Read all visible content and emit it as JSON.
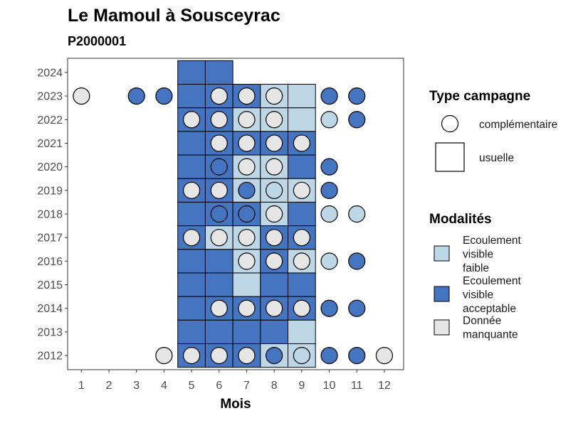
{
  "chart_data": {
    "type": "heatmap",
    "title": "Le Mamoul à Sousceyrac",
    "subtitle": "P2000001",
    "xlabel": "Mois",
    "ylabel": "",
    "x_ticks": [
      1,
      2,
      3,
      4,
      5,
      6,
      7,
      8,
      9,
      10,
      11,
      12
    ],
    "y_ticks": [
      2012,
      2013,
      2014,
      2015,
      2016,
      2017,
      2018,
      2019,
      2020,
      2021,
      2022,
      2023,
      2024
    ],
    "xlim": [
      0.5,
      12.7
    ],
    "ylim": [
      2011.4,
      2024.6
    ],
    "colors": {
      "Ecoulement visible faible": "#bdd7e7",
      "Ecoulement visible acceptable": "#4575c0",
      "Donnée manquante": "#e6e6e6"
    },
    "legend_type": {
      "title": "Type campagne",
      "entries": [
        {
          "key": "complementaire",
          "label": "complémentaire",
          "shape": "circle"
        },
        {
          "key": "usuelle",
          "label": "usuelle",
          "shape": "square"
        }
      ]
    },
    "legend_modalites": {
      "title": "Modalités",
      "entries": [
        {
          "key": "Ecoulement visible faible",
          "lines": [
            "Ecoulement",
            "visible",
            "faible"
          ]
        },
        {
          "key": "Ecoulement visible acceptable",
          "lines": [
            "Ecoulement",
            "visible",
            "acceptable"
          ]
        },
        {
          "key": "Donnée manquante",
          "lines": [
            "Donnée",
            "manquante"
          ]
        }
      ]
    },
    "tiles": [
      {
        "year": 2024,
        "month": 5,
        "modalite": "Ecoulement visible acceptable"
      },
      {
        "year": 2024,
        "month": 6,
        "modalite": "Ecoulement visible acceptable"
      },
      {
        "year": 2023,
        "month": 5,
        "modalite": "Ecoulement visible acceptable"
      },
      {
        "year": 2023,
        "month": 6,
        "modalite": "Ecoulement visible acceptable"
      },
      {
        "year": 2023,
        "month": 7,
        "modalite": "Ecoulement visible acceptable"
      },
      {
        "year": 2023,
        "month": 8,
        "modalite": "Ecoulement visible faible"
      },
      {
        "year": 2023,
        "month": 9,
        "modalite": "Ecoulement visible faible"
      },
      {
        "year": 2022,
        "month": 5,
        "modalite": "Ecoulement visible acceptable"
      },
      {
        "year": 2022,
        "month": 6,
        "modalite": "Ecoulement visible acceptable"
      },
      {
        "year": 2022,
        "month": 7,
        "modalite": "Ecoulement visible faible"
      },
      {
        "year": 2022,
        "month": 8,
        "modalite": "Ecoulement visible faible"
      },
      {
        "year": 2022,
        "month": 9,
        "modalite": "Ecoulement visible faible"
      },
      {
        "year": 2021,
        "month": 5,
        "modalite": "Ecoulement visible acceptable"
      },
      {
        "year": 2021,
        "month": 6,
        "modalite": "Ecoulement visible acceptable"
      },
      {
        "year": 2021,
        "month": 7,
        "modalite": "Ecoulement visible acceptable"
      },
      {
        "year": 2021,
        "month": 8,
        "modalite": "Ecoulement visible acceptable"
      },
      {
        "year": 2021,
        "month": 9,
        "modalite": "Ecoulement visible acceptable"
      },
      {
        "year": 2020,
        "month": 5,
        "modalite": "Ecoulement visible acceptable"
      },
      {
        "year": 2020,
        "month": 6,
        "modalite": "Ecoulement visible acceptable"
      },
      {
        "year": 2020,
        "month": 7,
        "modalite": "Ecoulement visible faible"
      },
      {
        "year": 2020,
        "month": 8,
        "modalite": "Ecoulement visible faible"
      },
      {
        "year": 2020,
        "month": 9,
        "modalite": "Ecoulement visible acceptable"
      },
      {
        "year": 2019,
        "month": 5,
        "modalite": "Ecoulement visible acceptable"
      },
      {
        "year": 2019,
        "month": 6,
        "modalite": "Ecoulement visible acceptable"
      },
      {
        "year": 2019,
        "month": 7,
        "modalite": "Ecoulement visible faible"
      },
      {
        "year": 2019,
        "month": 8,
        "modalite": "Ecoulement visible faible"
      },
      {
        "year": 2019,
        "month": 9,
        "modalite": "Ecoulement visible faible"
      },
      {
        "year": 2018,
        "month": 5,
        "modalite": "Ecoulement visible acceptable"
      },
      {
        "year": 2018,
        "month": 6,
        "modalite": "Ecoulement visible acceptable"
      },
      {
        "year": 2018,
        "month": 7,
        "modalite": "Ecoulement visible acceptable"
      },
      {
        "year": 2018,
        "month": 8,
        "modalite": "Ecoulement visible faible"
      },
      {
        "year": 2018,
        "month": 9,
        "modalite": "Ecoulement visible acceptable"
      },
      {
        "year": 2017,
        "month": 5,
        "modalite": "Ecoulement visible acceptable"
      },
      {
        "year": 2017,
        "month": 6,
        "modalite": "Ecoulement visible faible"
      },
      {
        "year": 2017,
        "month": 7,
        "modalite": "Ecoulement visible faible"
      },
      {
        "year": 2017,
        "month": 8,
        "modalite": "Ecoulement visible acceptable"
      },
      {
        "year": 2017,
        "month": 9,
        "modalite": "Ecoulement visible acceptable"
      },
      {
        "year": 2016,
        "month": 5,
        "modalite": "Ecoulement visible acceptable"
      },
      {
        "year": 2016,
        "month": 6,
        "modalite": "Ecoulement visible acceptable"
      },
      {
        "year": 2016,
        "month": 7,
        "modalite": "Ecoulement visible faible"
      },
      {
        "year": 2016,
        "month": 8,
        "modalite": "Ecoulement visible acceptable"
      },
      {
        "year": 2016,
        "month": 9,
        "modalite": "Ecoulement visible faible"
      },
      {
        "year": 2015,
        "month": 5,
        "modalite": "Ecoulement visible acceptable"
      },
      {
        "year": 2015,
        "month": 6,
        "modalite": "Ecoulement visible acceptable"
      },
      {
        "year": 2015,
        "month": 7,
        "modalite": "Ecoulement visible faible"
      },
      {
        "year": 2015,
        "month": 8,
        "modalite": "Ecoulement visible acceptable"
      },
      {
        "year": 2015,
        "month": 9,
        "modalite": "Ecoulement visible acceptable"
      },
      {
        "year": 2014,
        "month": 5,
        "modalite": "Ecoulement visible acceptable"
      },
      {
        "year": 2014,
        "month": 6,
        "modalite": "Ecoulement visible acceptable"
      },
      {
        "year": 2014,
        "month": 7,
        "modalite": "Ecoulement visible acceptable"
      },
      {
        "year": 2014,
        "month": 8,
        "modalite": "Ecoulement visible acceptable"
      },
      {
        "year": 2014,
        "month": 9,
        "modalite": "Ecoulement visible acceptable"
      },
      {
        "year": 2013,
        "month": 5,
        "modalite": "Ecoulement visible acceptable"
      },
      {
        "year": 2013,
        "month": 6,
        "modalite": "Ecoulement visible acceptable"
      },
      {
        "year": 2013,
        "month": 7,
        "modalite": "Ecoulement visible acceptable"
      },
      {
        "year": 2013,
        "month": 8,
        "modalite": "Ecoulement visible acceptable"
      },
      {
        "year": 2013,
        "month": 9,
        "modalite": "Ecoulement visible faible"
      },
      {
        "year": 2012,
        "month": 5,
        "modalite": "Ecoulement visible acceptable"
      },
      {
        "year": 2012,
        "month": 6,
        "modalite": "Ecoulement visible acceptable"
      },
      {
        "year": 2012,
        "month": 7,
        "modalite": "Ecoulement visible acceptable"
      },
      {
        "year": 2012,
        "month": 8,
        "modalite": "Ecoulement visible faible"
      },
      {
        "year": 2012,
        "month": 9,
        "modalite": "Ecoulement visible faible"
      }
    ],
    "points": [
      {
        "year": 2023,
        "month": 1,
        "modalite": "Donnée manquante"
      },
      {
        "year": 2023,
        "month": 3,
        "modalite": "Ecoulement visible acceptable"
      },
      {
        "year": 2023,
        "month": 4,
        "modalite": "Ecoulement visible acceptable"
      },
      {
        "year": 2023,
        "month": 6,
        "modalite": "Donnée manquante"
      },
      {
        "year": 2023,
        "month": 7,
        "modalite": "Donnée manquante"
      },
      {
        "year": 2023,
        "month": 8,
        "modalite": "Donnée manquante"
      },
      {
        "year": 2023,
        "month": 10,
        "modalite": "Ecoulement visible acceptable"
      },
      {
        "year": 2023,
        "month": 11,
        "modalite": "Ecoulement visible acceptable"
      },
      {
        "year": 2022,
        "month": 5,
        "modalite": "Donnée manquante"
      },
      {
        "year": 2022,
        "month": 6,
        "modalite": "Donnée manquante"
      },
      {
        "year": 2022,
        "month": 7,
        "modalite": "Donnée manquante"
      },
      {
        "year": 2022,
        "month": 8,
        "modalite": "Donnée manquante"
      },
      {
        "year": 2022,
        "month": 10,
        "modalite": "Ecoulement visible faible"
      },
      {
        "year": 2022,
        "month": 11,
        "modalite": "Ecoulement visible acceptable"
      },
      {
        "year": 2021,
        "month": 6,
        "modalite": "Donnée manquante"
      },
      {
        "year": 2021,
        "month": 7,
        "modalite": "Donnée manquante"
      },
      {
        "year": 2021,
        "month": 8,
        "modalite": "Donnée manquante"
      },
      {
        "year": 2021,
        "month": 9,
        "modalite": "Donnée manquante"
      },
      {
        "year": 2020,
        "month": 6,
        "modalite": "Ecoulement visible acceptable"
      },
      {
        "year": 2020,
        "month": 7,
        "modalite": "Donnée manquante"
      },
      {
        "year": 2020,
        "month": 8,
        "modalite": "Donnée manquante"
      },
      {
        "year": 2020,
        "month": 10,
        "modalite": "Ecoulement visible acceptable"
      },
      {
        "year": 2019,
        "month": 5,
        "modalite": "Donnée manquante"
      },
      {
        "year": 2019,
        "month": 6,
        "modalite": "Donnée manquante"
      },
      {
        "year": 2019,
        "month": 7,
        "modalite": "Ecoulement visible acceptable"
      },
      {
        "year": 2019,
        "month": 8,
        "modalite": "Ecoulement visible faible"
      },
      {
        "year": 2019,
        "month": 9,
        "modalite": "Donnée manquante"
      },
      {
        "year": 2019,
        "month": 10,
        "modalite": "Ecoulement visible acceptable"
      },
      {
        "year": 2018,
        "month": 6,
        "modalite": "Ecoulement visible acceptable"
      },
      {
        "year": 2018,
        "month": 7,
        "modalite": "Ecoulement visible acceptable"
      },
      {
        "year": 2018,
        "month": 8,
        "modalite": "Donnée manquante"
      },
      {
        "year": 2018,
        "month": 10,
        "modalite": "Ecoulement visible faible"
      },
      {
        "year": 2018,
        "month": 11,
        "modalite": "Ecoulement visible faible"
      },
      {
        "year": 2017,
        "month": 5,
        "modalite": "Donnée manquante"
      },
      {
        "year": 2017,
        "month": 6,
        "modalite": "Donnée manquante"
      },
      {
        "year": 2017,
        "month": 7,
        "modalite": "Donnée manquante"
      },
      {
        "year": 2017,
        "month": 8,
        "modalite": "Donnée manquante"
      },
      {
        "year": 2017,
        "month": 9,
        "modalite": "Donnée manquante"
      },
      {
        "year": 2016,
        "month": 7,
        "modalite": "Donnée manquante"
      },
      {
        "year": 2016,
        "month": 8,
        "modalite": "Donnée manquante"
      },
      {
        "year": 2016,
        "month": 9,
        "modalite": "Donnée manquante"
      },
      {
        "year": 2016,
        "month": 10,
        "modalite": "Ecoulement visible faible"
      },
      {
        "year": 2016,
        "month": 11,
        "modalite": "Ecoulement visible acceptable"
      },
      {
        "year": 2014,
        "month": 6,
        "modalite": "Donnée manquante"
      },
      {
        "year": 2014,
        "month": 7,
        "modalite": "Donnée manquante"
      },
      {
        "year": 2014,
        "month": 8,
        "modalite": "Donnée manquante"
      },
      {
        "year": 2014,
        "month": 9,
        "modalite": "Donnée manquante"
      },
      {
        "year": 2014,
        "month": 10,
        "modalite": "Ecoulement visible acceptable"
      },
      {
        "year": 2014,
        "month": 11,
        "modalite": "Ecoulement visible acceptable"
      },
      {
        "year": 2012,
        "month": 4,
        "modalite": "Donnée manquante"
      },
      {
        "year": 2012,
        "month": 5,
        "modalite": "Donnée manquante"
      },
      {
        "year": 2012,
        "month": 6,
        "modalite": "Donnée manquante"
      },
      {
        "year": 2012,
        "month": 7,
        "modalite": "Donnée manquante"
      },
      {
        "year": 2012,
        "month": 8,
        "modalite": "Ecoulement visible acceptable"
      },
      {
        "year": 2012,
        "month": 9,
        "modalite": "Ecoulement visible faible"
      },
      {
        "year": 2012,
        "month": 10,
        "modalite": "Ecoulement visible acceptable"
      },
      {
        "year": 2012,
        "month": 11,
        "modalite": "Ecoulement visible acceptable"
      },
      {
        "year": 2012,
        "month": 12,
        "modalite": "Donnée manquante"
      }
    ]
  }
}
